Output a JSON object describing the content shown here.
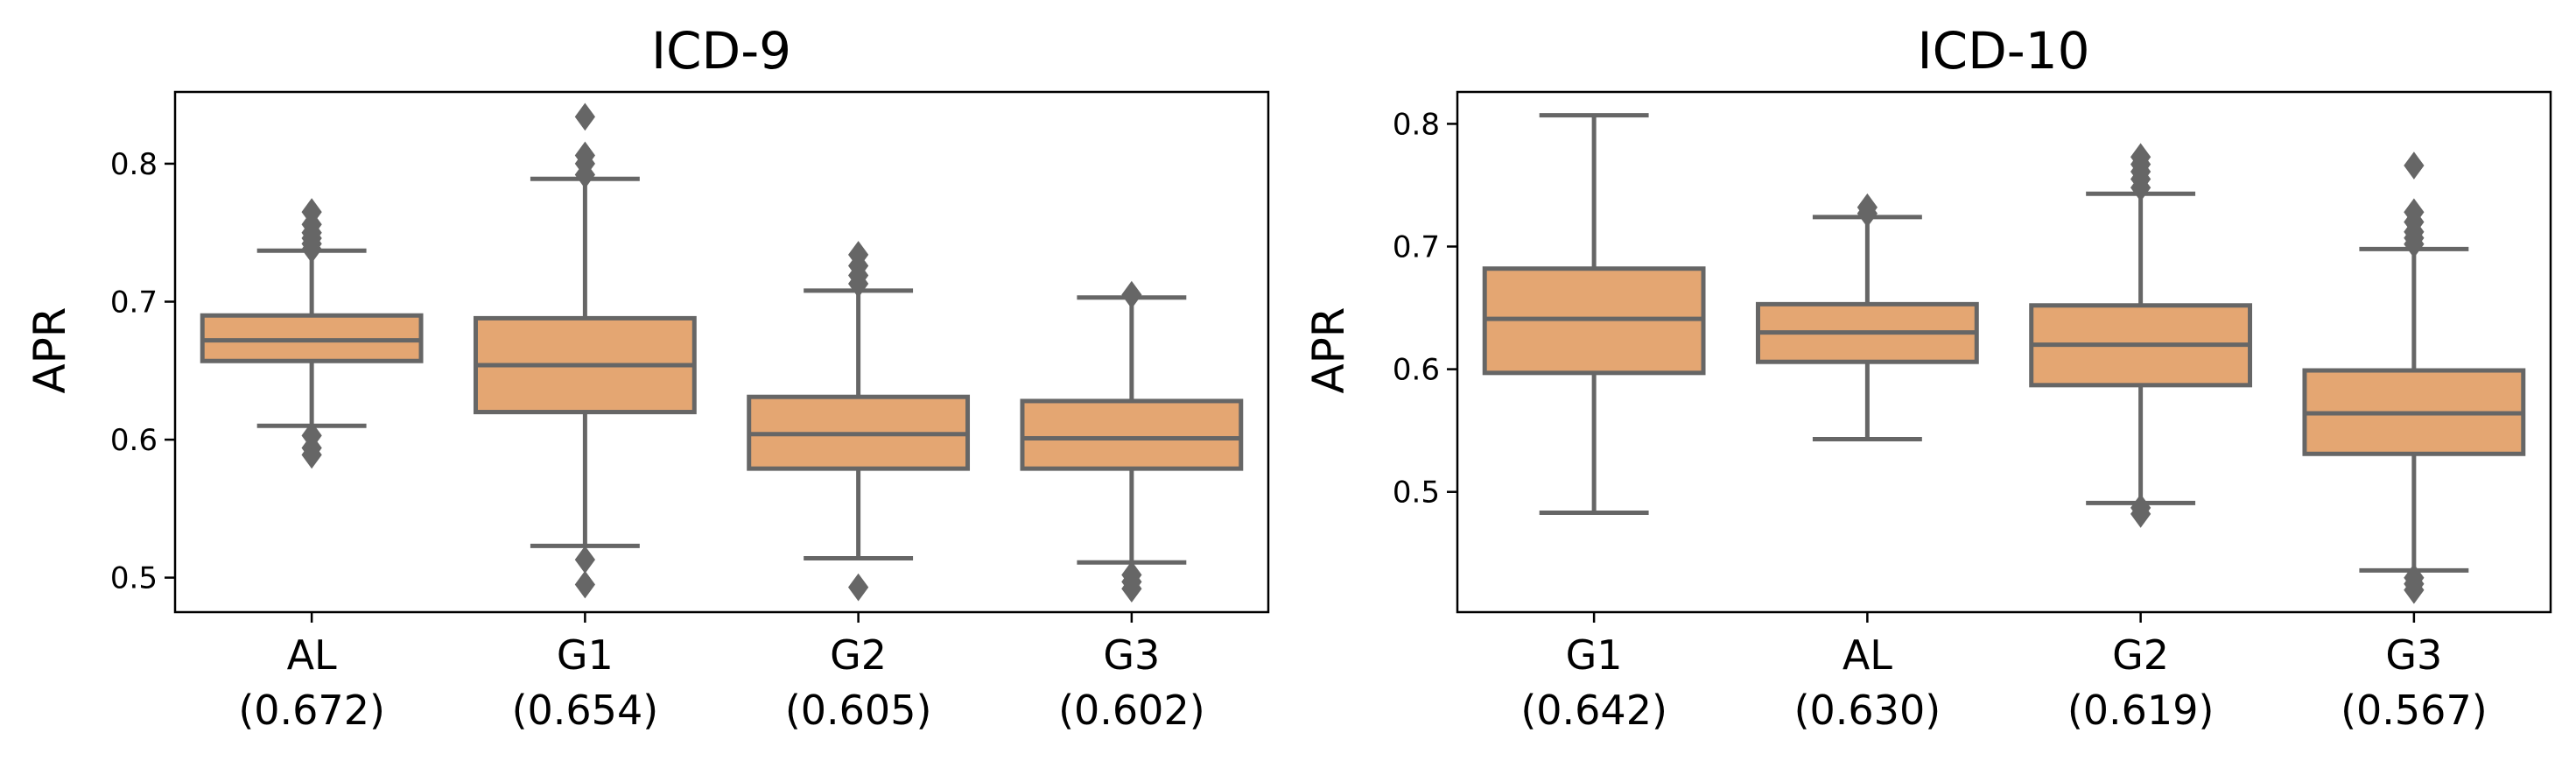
{
  "chart_data": [
    {
      "type": "box",
      "title": "ICD-9",
      "ylabel": "APR",
      "ylim": [
        0.475,
        0.852
      ],
      "yticks": [
        "0.5",
        "0.6",
        "0.7",
        "0.8"
      ],
      "box_color": "#E4A672",
      "line_color": "#666666",
      "categories": [
        {
          "label": "AL",
          "sublabel": "(0.672)",
          "whisker_low": 0.61,
          "q1": 0.657,
          "median": 0.672,
          "q3": 0.69,
          "whisker_high": 0.737,
          "outliers": [
            0.589,
            0.594,
            0.603,
            0.738,
            0.742,
            0.746,
            0.75,
            0.756,
            0.765
          ]
        },
        {
          "label": "G1",
          "sublabel": "(0.654)",
          "whisker_low": 0.523,
          "q1": 0.62,
          "median": 0.654,
          "q3": 0.688,
          "whisker_high": 0.789,
          "outliers": [
            0.495,
            0.513,
            0.792,
            0.8,
            0.806,
            0.834
          ]
        },
        {
          "label": "G2",
          "sublabel": "(0.605)",
          "whisker_low": 0.514,
          "q1": 0.579,
          "median": 0.604,
          "q3": 0.631,
          "whisker_high": 0.708,
          "outliers": [
            0.493,
            0.713,
            0.719,
            0.726,
            0.734
          ]
        },
        {
          "label": "G3",
          "sublabel": "(0.602)",
          "whisker_low": 0.511,
          "q1": 0.579,
          "median": 0.601,
          "q3": 0.628,
          "whisker_high": 0.703,
          "outliers": [
            0.492,
            0.497,
            0.502,
            0.705
          ]
        }
      ]
    },
    {
      "type": "box",
      "title": "ICD-10",
      "ylabel": "APR",
      "ylim": [
        0.402,
        0.826
      ],
      "yticks": [
        "0.5",
        "0.6",
        "0.7",
        "0.8"
      ],
      "box_color": "#E4A672",
      "line_color": "#666666",
      "categories": [
        {
          "label": "G1",
          "sublabel": "(0.642)",
          "whisker_low": 0.483,
          "q1": 0.597,
          "median": 0.641,
          "q3": 0.682,
          "whisker_high": 0.807,
          "outliers": []
        },
        {
          "label": "AL",
          "sublabel": "(0.630)",
          "whisker_low": 0.543,
          "q1": 0.606,
          "median": 0.63,
          "q3": 0.653,
          "whisker_high": 0.724,
          "outliers": [
            0.727,
            0.732
          ]
        },
        {
          "label": "G2",
          "sublabel": "(0.619)",
          "whisker_low": 0.491,
          "q1": 0.587,
          "median": 0.62,
          "q3": 0.652,
          "whisker_high": 0.743,
          "outliers": [
            0.482,
            0.487,
            0.748,
            0.755,
            0.761,
            0.767,
            0.773
          ]
        },
        {
          "label": "G3",
          "sublabel": "(0.567)",
          "whisker_low": 0.436,
          "q1": 0.531,
          "median": 0.564,
          "q3": 0.599,
          "whisker_high": 0.698,
          "outliers": [
            0.42,
            0.425,
            0.43,
            0.702,
            0.707,
            0.712,
            0.72,
            0.728,
            0.766
          ]
        }
      ]
    }
  ]
}
